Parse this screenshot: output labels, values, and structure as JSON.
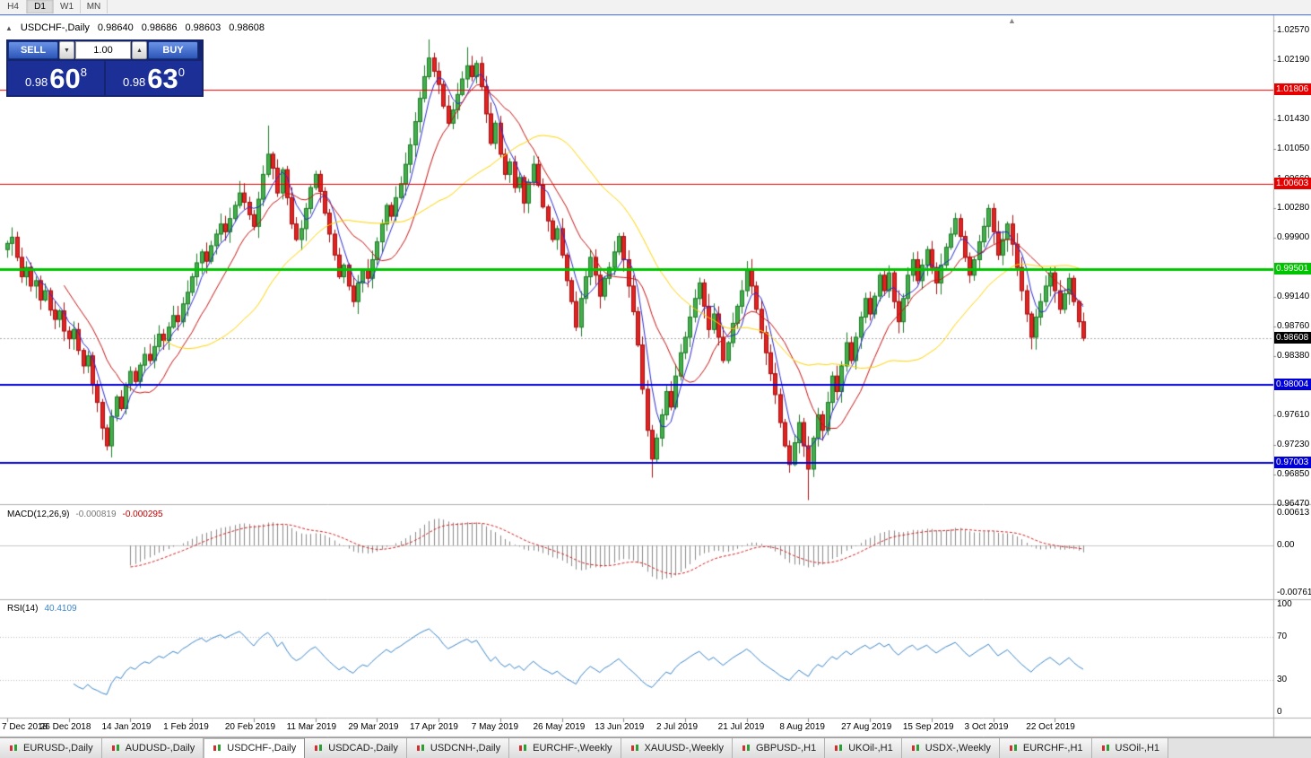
{
  "toolbar": {
    "periods": [
      {
        "label": "H4",
        "active": false
      },
      {
        "label": "D1",
        "active": true
      },
      {
        "label": "W1",
        "active": false
      },
      {
        "label": "MN",
        "active": false
      }
    ]
  },
  "icons": {
    "symbol_marker": "▲",
    "autoscroll": "▲",
    "vol_down": "▼",
    "vol_up": "▲"
  },
  "chart": {
    "info": {
      "symbol": "USDCHF-,Daily",
      "open": "0.98640",
      "high": "0.98686",
      "low": "0.98603",
      "close": "0.98608"
    },
    "oct": {
      "sell_label": "SELL",
      "buy_label": "BUY",
      "volume": "1.00",
      "sell_price": {
        "small": "0.98",
        "big": "60",
        "sup": "8"
      },
      "buy_price": {
        "small": "0.98",
        "big": "63",
        "sup": "0"
      }
    },
    "macd_header": {
      "label": "MACD(12,26,9)",
      "main_value": "-0.000819",
      "signal_value": "-0.000295"
    },
    "rsi_header": {
      "label": "RSI(14)",
      "value": "40.4109"
    }
  },
  "chart_data": {
    "type": "candlestick",
    "symbol": "USDCHF",
    "timeframe": "Daily",
    "x_labels": [
      "7 Dec 2018",
      "26 Dec 2018",
      "14 Jan 2019",
      "1 Feb 2019",
      "20 Feb 2019",
      "11 Mar 2019",
      "29 Mar 2019",
      "17 Apr 2019",
      "7 May 2019",
      "26 May 2019",
      "13 Jun 2019",
      "2 Jul 2019",
      "21 Jul 2019",
      "8 Aug 2019",
      "27 Aug 2019",
      "15 Sep 2019",
      "3 Oct 2019",
      "22 Oct 2019"
    ],
    "label_step": 13,
    "price_axis": {
      "range": [
        0.9648,
        1.0276
      ],
      "ticks": [
        "1.02570",
        "1.02190",
        "1.01430",
        "1.01050",
        "1.00660",
        "1.00280",
        "0.99900",
        "0.99140",
        "0.98760",
        "0.98380",
        "0.97610",
        "0.97230",
        "0.96850",
        "0.96470"
      ]
    },
    "levels": [
      {
        "price": 1.01806,
        "badge": "1.01806",
        "color": "#e60000",
        "width": 1
      },
      {
        "price": 1.00603,
        "badge": "1.00603",
        "color": "#e60000",
        "width": 1
      },
      {
        "price": 0.99501,
        "badge": "0.99501",
        "color": "#00c400",
        "width": 3
      },
      {
        "price": 0.98004,
        "badge": "0.98004",
        "color": "#0000d8",
        "width": 2
      },
      {
        "price": 0.97003,
        "badge": "0.97003",
        "color": "#0000d8",
        "width": 2
      }
    ],
    "current_price": {
      "value": 0.98608,
      "badge": "0.98608",
      "color": "#000000"
    },
    "candle_colors": {
      "up": "#44ae4c",
      "up_border": "#1d7c26",
      "down": "#e32222",
      "down_border": "#a30f0f"
    },
    "ma_lines": [
      {
        "name": "fast",
        "period": 5,
        "color": "#2b2bd0"
      },
      {
        "name": "medium",
        "period": 13,
        "color": "#c41414"
      },
      {
        "name": "slow",
        "period": 34,
        "color": "#ffd400"
      }
    ],
    "main": {
      "first_open": 0.9975,
      "closes": [
        0.9983,
        0.9991,
        0.9965,
        0.994,
        0.9952,
        0.9928,
        0.9935,
        0.991,
        0.9922,
        0.9897,
        0.9885,
        0.9896,
        0.987,
        0.986,
        0.9872,
        0.9845,
        0.9825,
        0.9838,
        0.98,
        0.9778,
        0.9745,
        0.9722,
        0.976,
        0.9785,
        0.977,
        0.98,
        0.9818,
        0.9805,
        0.9826,
        0.984,
        0.9832,
        0.985,
        0.9866,
        0.9858,
        0.9875,
        0.989,
        0.9882,
        0.9905,
        0.992,
        0.994,
        0.9958,
        0.9972,
        0.996,
        0.998,
        0.9995,
        1.0008,
        0.9998,
        1.0015,
        1.0032,
        1.0048,
        1.0036,
        1.002,
        1.0005,
        1.004,
        1.0072,
        1.0098,
        1.008,
        1.0048,
        1.0078,
        1.0042,
        1.0008,
        0.9988,
        1.0002,
        1.0028,
        1.0055,
        1.0072,
        1.005,
        1.0022,
        0.9995,
        0.9968,
        0.994,
        0.9955,
        0.9928,
        0.9908,
        0.9932,
        0.9948,
        0.9938,
        0.9962,
        0.9985,
        1.0008,
        1.0032,
        1.0018,
        1.0042,
        1.006,
        1.0085,
        1.011,
        1.014,
        1.017,
        1.0198,
        1.0222,
        1.0205,
        1.0188,
        1.016,
        1.0138,
        1.0155,
        1.0175,
        1.0195,
        1.0212,
        1.0198,
        1.0215,
        1.0185,
        1.015,
        1.0112,
        1.0138,
        1.0098,
        1.0072,
        1.0088,
        1.0055,
        1.0068,
        1.0035,
        1.0062,
        1.0085,
        1.0058,
        1.003,
        1.0012,
        0.9988,
        1.0002,
        0.9968,
        0.9935,
        0.9908,
        0.9875,
        0.9912,
        0.994,
        0.9965,
        0.9942,
        0.9915,
        0.9938,
        0.9952,
        0.9972,
        0.9992,
        0.9962,
        0.9928,
        0.9895,
        0.9852,
        0.9795,
        0.9742,
        0.9705,
        0.9732,
        0.9762,
        0.9792,
        0.9772,
        0.9812,
        0.9842,
        0.9862,
        0.9888,
        0.9912,
        0.9932,
        0.9902,
        0.9872,
        0.9892,
        0.9862,
        0.9832,
        0.9855,
        0.988,
        0.9902,
        0.9922,
        0.9948,
        0.9928,
        0.9898,
        0.9868,
        0.9842,
        0.9815,
        0.9788,
        0.9752,
        0.9722,
        0.9698,
        0.9726,
        0.9752,
        0.9722,
        0.9692,
        0.9732,
        0.9762,
        0.9742,
        0.9778,
        0.9812,
        0.9792,
        0.9825,
        0.9855,
        0.9832,
        0.9862,
        0.9888,
        0.9912,
        0.9892,
        0.9915,
        0.9942,
        0.9922,
        0.9945,
        0.9908,
        0.9882,
        0.9912,
        0.9942,
        0.9962,
        0.9935,
        0.9955,
        0.9975,
        0.9952,
        0.9932,
        0.9955,
        0.9978,
        0.9995,
        1.0015,
        0.9992,
        0.9965,
        0.9942,
        0.9962,
        0.9985,
        1.0005,
        1.0028,
        0.9998,
        0.9968,
        0.9988,
        1.0008,
        0.9982,
        0.9952,
        0.9922,
        0.9892,
        0.9862,
        0.9888,
        0.9908,
        0.9928,
        0.9945,
        0.9922,
        0.9898,
        0.9918,
        0.9938,
        0.9908,
        0.9882,
        0.98608
      ],
      "wick_highs": {
        "55": 1.0135,
        "89": 1.0246,
        "97": 1.0236
      },
      "wick_lows": {
        "21": 0.9716,
        "136": 0.9681,
        "169": 0.9652
      }
    },
    "macd_panel": {
      "params": [
        12,
        26,
        9
      ],
      "axis_labels": [
        "0.00613",
        "0.00",
        "-0.00761"
      ],
      "histogram_color": "#8a8a8a",
      "signal_color": "#d02020"
    },
    "rsi_panel": {
      "period": 14,
      "axis_labels": [
        "100",
        "70",
        "30",
        "0"
      ],
      "guide_levels": [
        70,
        30
      ],
      "line_color": "#3c86c8"
    }
  },
  "tabs": [
    {
      "label": "EURUSD-,Daily",
      "active": false
    },
    {
      "label": "AUDUSD-,Daily",
      "active": false
    },
    {
      "label": "USDCHF-,Daily",
      "active": true
    },
    {
      "label": "USDCAD-,Daily",
      "active": false
    },
    {
      "label": "USDCNH-,Daily",
      "active": false
    },
    {
      "label": "EURCHF-,Weekly",
      "active": false
    },
    {
      "label": "XAUUSD-,Weekly",
      "active": false
    },
    {
      "label": "GBPUSD-,H1",
      "active": false
    },
    {
      "label": "UKOil-,H1",
      "active": false
    },
    {
      "label": "USDX-,Weekly",
      "active": false
    },
    {
      "label": "EURCHF-,H1",
      "active": false
    },
    {
      "label": "USOil-,H1",
      "active": false
    }
  ]
}
